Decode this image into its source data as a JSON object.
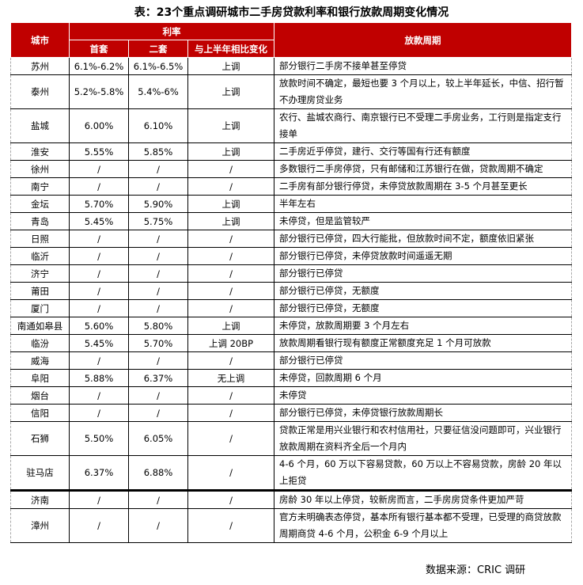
{
  "title": "表：23个重点调研城市二手房贷款利率和银行放款周期变化情况",
  "headers": {
    "city": "城市",
    "rate": "利率",
    "first": "首套",
    "second": "二套",
    "change": "与上半年相比变化",
    "cycle": "放款周期"
  },
  "rows": [
    [
      "苏州",
      "6.1%-6.2%",
      "6.1%-6.5%",
      "上调",
      "部分银行二手房不接单甚至停贷"
    ],
    [
      "泰州",
      "5.2%-5.8%",
      "5.4%-6%",
      "上调",
      "放款时间不确定，最短也要 3 个月以上，较上半年延长，中信、招行暂不办理房贷业务"
    ],
    [
      "盐城",
      "6.00%",
      "6.10%",
      "上调",
      "农行、盐城农商行、南京银行已不受理二手房业务，工行则是指定支行接单"
    ],
    [
      "淮安",
      "5.55%",
      "5.85%",
      "上调",
      "二手房近乎停贷，建行、交行等国有行还有额度"
    ],
    [
      "徐州",
      "/",
      "/",
      "/",
      "多数银行二手房停贷，只有邮储和江苏银行在做，贷款周期不确定"
    ],
    [
      "南宁",
      "/",
      "/",
      "/",
      "二手房有部分银行停贷，未停贷放款周期在 3-5 个月甚至更长"
    ],
    [
      "金坛",
      "5.70%",
      "5.90%",
      "上调",
      "半年左右"
    ],
    [
      "青岛",
      "5.45%",
      "5.75%",
      "上调",
      "未停贷，但是监管较严"
    ],
    [
      "日照",
      "/",
      "/",
      "/",
      "部分银行已停贷，四大行能批，但放款时间不定，额度依旧紧张"
    ],
    [
      "临沂",
      "/",
      "/",
      "/",
      "部分银行已停贷，未停贷放款时间遥遥无期"
    ],
    [
      "济宁",
      "/",
      "/",
      "/",
      "部分银行已停贷"
    ],
    [
      "莆田",
      "/",
      "/",
      "/",
      "部分银行已停贷，无额度"
    ],
    [
      "厦门",
      "/",
      "/",
      "/",
      "部分银行已停贷，无额度"
    ],
    [
      "南通如皋县",
      "5.60%",
      "5.80%",
      "上调",
      "未停贷，放款周期要 3 个月左右"
    ],
    [
      "临汾",
      "5.45%",
      "5.70%",
      "上调 20BP",
      "放款周期看银行现有额度正常额度充足 1 个月可放款"
    ],
    [
      "威海",
      "/",
      "/",
      "/",
      "部分银行已停贷"
    ],
    [
      "阜阳",
      "5.88%",
      "6.37%",
      "无上调",
      "未停贷，回款周期 6 个月"
    ],
    [
      "烟台",
      "/",
      "/",
      "/",
      "未停贷"
    ],
    [
      "信阳",
      "/",
      "/",
      "/",
      "部分银行已停贷，未停贷银行放款周期长"
    ],
    [
      "石狮",
      "5.50%",
      "6.05%",
      "/",
      "贷款正常是用兴业银行和农村信用社，只要征信没问题即可，兴业银行放款周期在资料齐全后一个月内"
    ],
    [
      "驻马店",
      "6.37%",
      "6.88%",
      "/",
      "4-6 个月，60 万以下容易贷款，60 万以上不容易贷款，房龄 20 年以上拒贷"
    ],
    [
      "济南",
      "/",
      "/",
      "/",
      "房龄 30 年以上停贷，较新房而言，二手房房贷条件更加严苛"
    ],
    [
      "漳州",
      "/",
      "/",
      "/",
      "官方未明确表态停贷，基本所有银行基本都不受理，已受理的商贷放款周期商贷 4-6 个月，公积金 6-9 个月以上"
    ]
  ],
  "source": "数据来源：CRIC 调研",
  "colors": {
    "header_bg": "#c00000",
    "header_text": "#ffffff"
  }
}
